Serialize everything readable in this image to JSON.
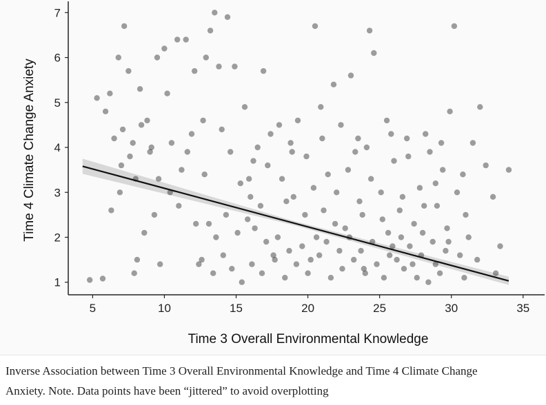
{
  "chart_data": {
    "type": "scatter",
    "xlabel": "Time 3 Overall Environmental Knowledge",
    "ylabel": "Time 4 Climate Change Anxiety",
    "xlim": [
      3.3,
      36.5
    ],
    "ylim": [
      0.72,
      7.25
    ],
    "xticks": [
      5,
      10,
      15,
      20,
      25,
      30,
      35
    ],
    "yticks": [
      1,
      2,
      3,
      4,
      5,
      6,
      7
    ],
    "grid": false,
    "legend": "none",
    "point_color": "#2b2b2b",
    "point_opacity": 0.45,
    "fit_line": {
      "x": [
        4.3,
        34.0
      ],
      "y": [
        3.58,
        1.03
      ],
      "color": "#111111"
    },
    "confidence_band_color": "#cccccc",
    "points": [
      [
        4.8,
        1.05
      ],
      [
        5.7,
        1.08
      ],
      [
        5.3,
        5.1
      ],
      [
        5.9,
        4.8
      ],
      [
        6.2,
        5.2
      ],
      [
        6.5,
        4.2
      ],
      [
        6.8,
        6.0
      ],
      [
        7.0,
        3.6
      ],
      [
        7.2,
        6.7
      ],
      [
        7.5,
        5.7
      ],
      [
        7.1,
        4.4
      ],
      [
        7.8,
        4.1
      ],
      [
        8.0,
        3.3
      ],
      [
        8.3,
        5.3
      ],
      [
        8.6,
        2.1
      ],
      [
        8.8,
        4.6
      ],
      [
        9.0,
        3.9
      ],
      [
        9.3,
        2.5
      ],
      [
        9.5,
        6.0
      ],
      [
        10.0,
        6.2
      ],
      [
        9.7,
        1.4
      ],
      [
        8.1,
        1.5
      ],
      [
        7.9,
        1.2
      ],
      [
        10.2,
        5.2
      ],
      [
        10.5,
        4.1
      ],
      [
        10.9,
        6.4
      ],
      [
        11.2,
        3.5
      ],
      [
        11.5,
        6.4
      ],
      [
        11.9,
        4.3
      ],
      [
        12.1,
        5.7
      ],
      [
        12.4,
        1.4
      ],
      [
        12.7,
        4.6
      ],
      [
        12.9,
        6.0
      ],
      [
        13.2,
        6.6
      ],
      [
        13.5,
        7.0
      ],
      [
        13.8,
        5.8
      ],
      [
        13.1,
        2.3
      ],
      [
        14.0,
        4.4
      ],
      [
        14.4,
        6.9
      ],
      [
        14.9,
        5.8
      ],
      [
        15.3,
        3.2
      ],
      [
        15.6,
        4.9
      ],
      [
        16.0,
        2.9
      ],
      [
        16.5,
        4.0
      ],
      [
        16.9,
        5.7
      ],
      [
        17.2,
        3.6
      ],
      [
        17.6,
        1.6
      ],
      [
        18.0,
        4.5
      ],
      [
        18.5,
        2.8
      ],
      [
        18.9,
        3.9
      ],
      [
        19.3,
        4.6
      ],
      [
        19.8,
        2.5
      ],
      [
        20.2,
        1.5
      ],
      [
        20.5,
        6.7
      ],
      [
        20.9,
        4.9
      ],
      [
        21.4,
        3.4
      ],
      [
        21.8,
        5.4
      ],
      [
        22.2,
        1.7
      ],
      [
        22.6,
        2.2
      ],
      [
        23.0,
        5.6
      ],
      [
        23.5,
        4.2
      ],
      [
        23.9,
        1.3
      ],
      [
        24.3,
        6.6
      ],
      [
        24.6,
        6.1
      ],
      [
        25.1,
        3.0
      ],
      [
        25.5,
        4.6
      ],
      [
        25.9,
        1.8
      ],
      [
        26.4,
        2.6
      ],
      [
        26.9,
        4.2
      ],
      [
        27.3,
        1.4
      ],
      [
        27.8,
        3.1
      ],
      [
        28.2,
        4.3
      ],
      [
        28.7,
        1.9
      ],
      [
        29.0,
        2.7
      ],
      [
        29.4,
        3.5
      ],
      [
        29.9,
        4.8
      ],
      [
        30.2,
        6.7
      ],
      [
        30.6,
        1.6
      ],
      [
        31.0,
        2.5
      ],
      [
        31.5,
        4.1
      ],
      [
        32.0,
        4.9
      ],
      [
        32.4,
        3.6
      ],
      [
        32.9,
        2.9
      ],
      [
        33.4,
        1.8
      ],
      [
        34.0,
        3.5
      ],
      [
        33.1,
        1.2
      ],
      [
        31.8,
        1.5
      ],
      [
        30.9,
        1.1
      ],
      [
        29.2,
        1.2
      ],
      [
        28.4,
        1.0
      ],
      [
        27.6,
        1.1
      ],
      [
        26.7,
        1.3
      ],
      [
        25.3,
        1.1
      ],
      [
        24.8,
        1.4
      ],
      [
        24.0,
        1.2
      ],
      [
        23.2,
        1.5
      ],
      [
        22.4,
        1.3
      ],
      [
        21.6,
        1.1
      ],
      [
        20.8,
        1.6
      ],
      [
        20.0,
        1.2
      ],
      [
        19.2,
        1.4
      ],
      [
        18.4,
        1.1
      ],
      [
        17.7,
        1.5
      ],
      [
        16.8,
        1.2
      ],
      [
        16.1,
        1.4
      ],
      [
        15.4,
        1.0
      ],
      [
        14.7,
        1.3
      ],
      [
        14.1,
        1.6
      ],
      [
        13.4,
        1.2
      ],
      [
        12.6,
        1.5
      ],
      [
        21.3,
        1.9
      ],
      [
        22.9,
        2.0
      ],
      [
        23.7,
        1.7
      ],
      [
        24.5,
        1.9
      ],
      [
        25.7,
        1.6
      ],
      [
        26.2,
        1.5
      ],
      [
        27.1,
        1.8
      ],
      [
        27.9,
        1.6
      ],
      [
        28.9,
        1.4
      ],
      [
        29.6,
        1.7
      ],
      [
        19.6,
        1.8
      ],
      [
        18.7,
        1.7
      ],
      [
        17.9,
        2.0
      ],
      [
        17.1,
        1.9
      ],
      [
        16.3,
        2.2
      ],
      [
        15.8,
        2.4
      ],
      [
        15.1,
        2.1
      ],
      [
        14.3,
        2.5
      ],
      [
        13.6,
        2.0
      ],
      [
        12.2,
        2.3
      ],
      [
        11.0,
        2.7
      ],
      [
        10.4,
        3.0
      ],
      [
        9.6,
        3.3
      ],
      [
        9.1,
        4.0
      ],
      [
        8.4,
        4.5
      ],
      [
        7.6,
        3.8
      ],
      [
        6.9,
        3.0
      ],
      [
        6.3,
        2.6
      ],
      [
        11.6,
        3.9
      ],
      [
        12.8,
        3.4
      ],
      [
        14.6,
        3.9
      ],
      [
        15.9,
        3.3
      ],
      [
        16.7,
        2.7
      ],
      [
        18.2,
        3.3
      ],
      [
        19.0,
        2.9
      ],
      [
        20.4,
        3.1
      ],
      [
        21.1,
        2.6
      ],
      [
        22.0,
        3.0
      ],
      [
        22.8,
        3.5
      ],
      [
        23.6,
        2.8
      ],
      [
        24.4,
        3.3
      ],
      [
        25.2,
        2.4
      ],
      [
        26.0,
        3.7
      ],
      [
        26.6,
        2.9
      ],
      [
        27.4,
        2.3
      ],
      [
        28.1,
        2.7
      ],
      [
        28.9,
        3.2
      ],
      [
        29.7,
        2.2
      ],
      [
        30.4,
        3.0
      ],
      [
        31.2,
        2.0
      ],
      [
        16.2,
        3.7
      ],
      [
        17.4,
        4.3
      ],
      [
        18.8,
        4.1
      ],
      [
        19.9,
        3.8
      ],
      [
        21.0,
        4.2
      ],
      [
        22.3,
        4.5
      ],
      [
        23.3,
        3.9
      ],
      [
        24.1,
        4.0
      ],
      [
        25.8,
        4.3
      ],
      [
        27.0,
        3.8
      ],
      [
        28.5,
        3.9
      ],
      [
        29.3,
        4.1
      ],
      [
        30.8,
        3.4
      ],
      [
        20.6,
        2.0
      ],
      [
        21.9,
        2.3
      ],
      [
        23.8,
        2.5
      ],
      [
        25.6,
        2.1
      ],
      [
        26.5,
        2.0
      ],
      [
        28.0,
        2.1
      ],
      [
        29.8,
        1.9
      ]
    ]
  },
  "caption": {
    "line1": "Inverse Association between Time 3 Overall Environmental Knowledge and Time 4 Climate Change",
    "line2": "Anxiety. Note. Data points have been “jittered” to avoid overplotting"
  }
}
